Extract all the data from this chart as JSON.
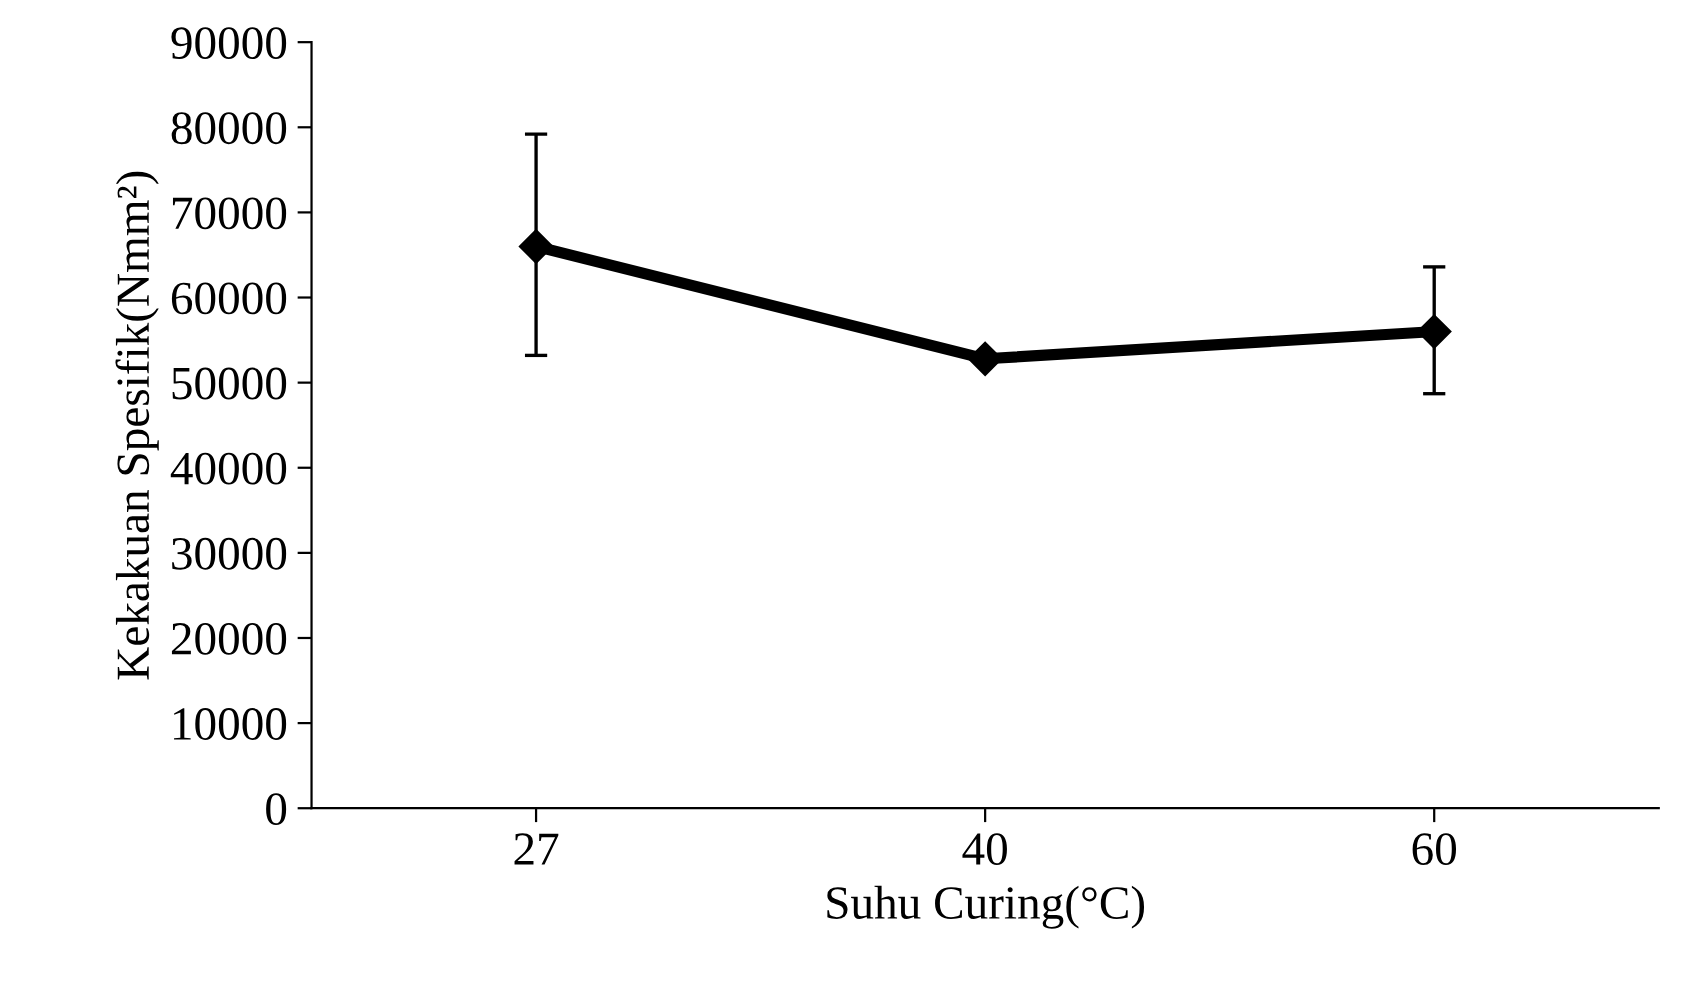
{
  "chart_data": {
    "type": "line",
    "xlabel": "Suhu Curing(°C)",
    "ylabel": "Kekakuan Spesifik(Nmm²)",
    "categories": [
      "27",
      "40",
      "60"
    ],
    "series": [
      {
        "color": "#000000",
        "values": [
          66000,
          52800,
          56000
        ],
        "errors": [
          [
            53200,
            79200
          ],
          null,
          [
            48700,
            63600
          ]
        ]
      }
    ],
    "ylim": [
      0,
      90000
    ],
    "yticks": [
      0,
      10000,
      20000,
      30000,
      40000,
      50000,
      60000,
      70000,
      80000,
      90000
    ],
    "marker": "diamond",
    "line_style": "solid",
    "grid": false,
    "legend": false
  }
}
